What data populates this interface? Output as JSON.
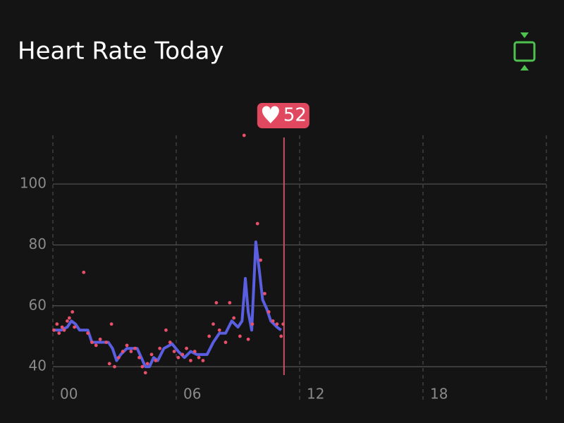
{
  "chart_data": {
    "type": "line",
    "title": "Heart Rate Today",
    "xlim": [
      0,
      24
    ],
    "xticks": [
      {
        "value": 0,
        "label": "00"
      },
      {
        "value": 6,
        "label": "06"
      },
      {
        "value": 12,
        "label": "12"
      },
      {
        "value": 18,
        "label": "18"
      }
    ],
    "ylim": [
      34,
      116
    ],
    "yticks": [
      40,
      60,
      80,
      100
    ],
    "grid": true,
    "series": [
      {
        "color": "#5a5ee0",
        "x": [
          0,
          0.4,
          0.7,
          0.9,
          1.1,
          1.3,
          1.7,
          1.9,
          2.3,
          2.7,
          2.9,
          3.1,
          3.3,
          3.6,
          4.1,
          4.3,
          4.5,
          4.7,
          4.9,
          5.1,
          5.4,
          5.8,
          6.1,
          6.4,
          6.7,
          7.0,
          7.5,
          7.8,
          8.1,
          8.4,
          8.7,
          9.0,
          9.2,
          9.36,
          9.5,
          9.67,
          9.87,
          10.05,
          10.2,
          10.4,
          10.6,
          10.9,
          11.1
        ],
        "values": [
          52,
          52,
          53,
          55,
          54,
          52,
          52,
          48,
          48,
          48,
          46,
          42,
          44,
          46,
          46,
          43,
          40,
          40,
          43,
          42,
          46,
          47.5,
          45,
          43,
          45,
          44,
          44,
          48,
          51,
          51,
          55,
          53,
          55,
          69,
          58,
          52,
          81,
          71,
          62,
          59,
          55,
          53,
          52
        ]
      }
    ],
    "points": {
      "color": "#e8506a",
      "x": [
        0.05,
        0.2,
        0.3,
        0.45,
        0.55,
        0.7,
        0.8,
        0.95,
        1.05,
        1.5,
        1.7,
        1.9,
        2.1,
        2.3,
        2.6,
        2.75,
        2.85,
        3.0,
        3.2,
        3.4,
        3.6,
        3.8,
        4.0,
        4.2,
        4.35,
        4.5,
        4.6,
        4.8,
        5.0,
        5.2,
        5.5,
        5.7,
        5.9,
        6.1,
        6.3,
        6.5,
        6.7,
        6.9,
        7.1,
        7.3,
        7.6,
        7.8,
        7.95,
        8.1,
        8.4,
        8.6,
        8.8,
        9.1,
        9.3,
        9.5,
        9.7,
        9.95,
        10.1,
        10.3,
        10.5,
        10.7,
        10.9,
        11.1,
        11.2
      ],
      "values": [
        52,
        54,
        51,
        53,
        52,
        55,
        56,
        58,
        53,
        71,
        51,
        48,
        47,
        49,
        48,
        41,
        54,
        40,
        43,
        45,
        47,
        45,
        46,
        43,
        40,
        38,
        41,
        44,
        42,
        46,
        52,
        48,
        45,
        43,
        44,
        46,
        42,
        45,
        43,
        42,
        50,
        54,
        61,
        52,
        48,
        61,
        56,
        50,
        116,
        49,
        54,
        87,
        75,
        64,
        58,
        55,
        54,
        50,
        54
      ]
    },
    "annotation": {
      "x": 11.24,
      "value": 52
    }
  }
}
